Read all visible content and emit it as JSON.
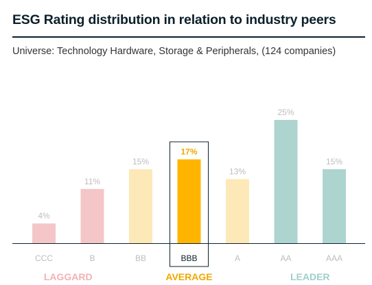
{
  "title": "ESG Rating distribution in relation to industry peers",
  "subtitle": "Universe: Technology Hardware, Storage & Peripherals, (124 companies)",
  "colors": {
    "laggard": "#f4c6c8",
    "average_light": "#fde9b7",
    "average_highlight": "#ffb500",
    "leader": "#aed4d0",
    "highlight_text": "#f0a800",
    "muted_text": "#bdbdbd",
    "laggard_text": "#f2b2b4",
    "leader_text": "#9fcfcb",
    "baseline": "#0b1f2a"
  },
  "chart_data": {
    "type": "bar",
    "title": "ESG Rating distribution in relation to industry peers",
    "subtitle": "Universe: Technology Hardware, Storage & Peripherals, (124 companies)",
    "categories": [
      "CCC",
      "B",
      "BB",
      "BBB",
      "A",
      "AA",
      "AAA"
    ],
    "values": [
      4,
      11,
      15,
      17,
      13,
      25,
      15
    ],
    "value_labels": [
      "4%",
      "11%",
      "15%",
      "17%",
      "13%",
      "25%",
      "15%"
    ],
    "groups": [
      "laggard",
      "laggard",
      "average",
      "average",
      "average",
      "leader",
      "leader"
    ],
    "highlight": "BBB",
    "group_labels": {
      "laggard": "LAGGARD",
      "average": "AVERAGE",
      "leader": "LEADER"
    },
    "ylim": [
      0,
      26
    ],
    "grid": false,
    "legend": "none"
  }
}
